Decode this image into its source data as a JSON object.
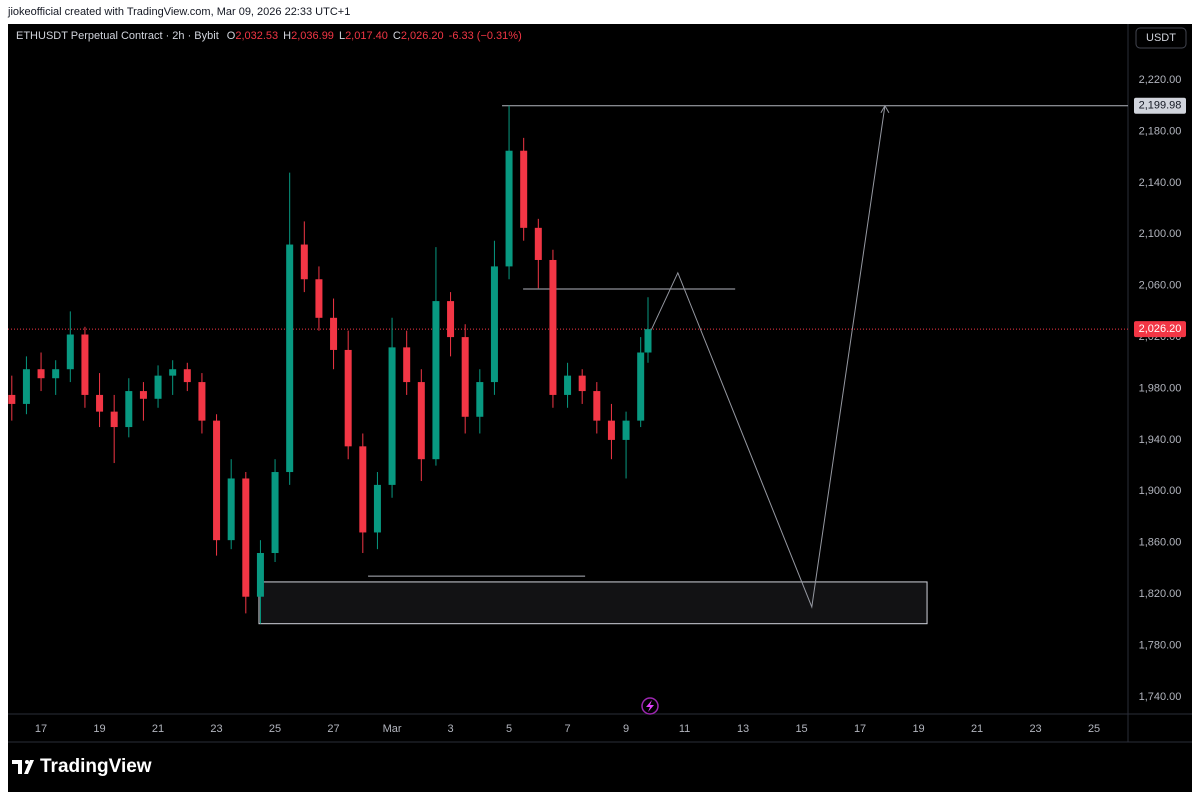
{
  "header": {
    "credit": "jiokeofficial created with TradingView.com, Mar 09, 2026 22:33 UTC+1"
  },
  "chart_data": {
    "type": "candlestick",
    "title": "ETHUSDT Perpetual Contract · 2h · Bybit",
    "ohlc_legend": [
      {
        "key": "O",
        "text": "2,032.53"
      },
      {
        "key": "H",
        "text": "2,036.99"
      },
      {
        "key": "L",
        "text": "2,017.40"
      },
      {
        "key": "C",
        "text": "2,026.20"
      }
    ],
    "change": "-6.33 (−0.31%)",
    "currency": "USDT",
    "brand": "TradingView",
    "up_color": "#089981",
    "down_color": "#f23645",
    "x": [
      16,
      16.5,
      17,
      17.5,
      18,
      18.5,
      19,
      19.5,
      20,
      20.5,
      21,
      21.5,
      22,
      22.5,
      23,
      23.5,
      24,
      24.5,
      25,
      25.5,
      26,
      26.5,
      27,
      27.5,
      28,
      28.5,
      29,
      29.5,
      30,
      30.5,
      31,
      31.5,
      32,
      32.5,
      33,
      33.5,
      34,
      34.5,
      35,
      35.5,
      36,
      36.5,
      37,
      37.5,
      37.75
    ],
    "open": [
      1975,
      1968,
      1995,
      1988,
      1995,
      2022,
      1975,
      1962,
      1950,
      1978,
      1972,
      1990,
      1995,
      1985,
      1955,
      1862,
      1910,
      1818,
      1852,
      1915,
      2092,
      2065,
      2035,
      2010,
      1935,
      1868,
      1905,
      2012,
      1985,
      1925,
      2048,
      2020,
      1958,
      1985,
      2075,
      2165,
      2105,
      2080,
      1975,
      1990,
      1978,
      1955,
      1940,
      1955,
      2008
    ],
    "high": [
      1990,
      2005,
      2008,
      2002,
      2040,
      2028,
      1992,
      1975,
      1988,
      1985,
      1998,
      2002,
      2000,
      1992,
      1960,
      1925,
      1915,
      1862,
      1925,
      2148,
      2110,
      2075,
      2050,
      2025,
      1945,
      1915,
      2035,
      2025,
      1995,
      2090,
      2055,
      2030,
      1995,
      2095,
      2200,
      2175,
      2112,
      2088,
      2000,
      1995,
      1985,
      1968,
      1962,
      2020,
      2051
    ],
    "low": [
      1955,
      1960,
      1978,
      1975,
      1985,
      1965,
      1950,
      1922,
      1942,
      1955,
      1965,
      1975,
      1978,
      1945,
      1850,
      1855,
      1805,
      1797,
      1845,
      1905,
      2055,
      2025,
      1995,
      1925,
      1852,
      1855,
      1895,
      1975,
      1908,
      1920,
      2005,
      1945,
      1945,
      1975,
      2065,
      2095,
      2058,
      1965,
      1965,
      1968,
      1945,
      1925,
      1910,
      1950,
      2000
    ],
    "close": [
      1968,
      1995,
      1988,
      1995,
      2022,
      1975,
      1962,
      1950,
      1978,
      1972,
      1990,
      1995,
      1985,
      1955,
      1862,
      1910,
      1818,
      1852,
      1915,
      2092,
      2065,
      2035,
      2010,
      1935,
      1868,
      1905,
      2012,
      1985,
      1925,
      2048,
      2020,
      1958,
      1985,
      2075,
      2165,
      2105,
      2080,
      1975,
      1990,
      1978,
      1955,
      1940,
      1955,
      2008,
      2026.2
    ],
    "xlim": [
      15.87,
      54.16
    ],
    "xticks": [
      17,
      19,
      21,
      23,
      25,
      27,
      {
        "value": 29,
        "label": "Mar"
      },
      {
        "value": 31,
        "label": "3"
      },
      {
        "value": 33,
        "label": "5"
      },
      {
        "value": 35,
        "label": "7"
      },
      {
        "value": 37,
        "label": "9"
      },
      {
        "value": 39,
        "label": "11"
      },
      {
        "value": 41,
        "label": "13"
      },
      {
        "value": 43,
        "label": "15"
      },
      {
        "value": 45,
        "label": "17"
      },
      {
        "value": 47,
        "label": "19"
      },
      {
        "value": 49,
        "label": "21"
      },
      {
        "value": 51,
        "label": "23"
      },
      {
        "value": 53,
        "label": "25"
      }
    ],
    "ylim": [
      1728.3,
      2263.6
    ],
    "yticks": [
      {
        "value": 1740,
        "label": "1,740.00"
      },
      {
        "value": 1780,
        "label": "1,780.00"
      },
      {
        "value": 1820,
        "label": "1,820.00"
      },
      {
        "value": 1860,
        "label": "1,860.00"
      },
      {
        "value": 1900,
        "label": "1,900.00"
      },
      {
        "value": 1940,
        "label": "1,940.00"
      },
      {
        "value": 1980,
        "label": "1,980.00"
      },
      {
        "value": 2020,
        "label": "2,020.00"
      },
      {
        "value": 2060,
        "label": "2,060.00"
      },
      {
        "value": 2100,
        "label": "2,100.00"
      },
      {
        "value": 2140,
        "label": "2,140.00"
      },
      {
        "value": 2180,
        "label": "2,180.00"
      },
      {
        "value": 2220,
        "label": "2,220.00"
      }
    ],
    "grid": false,
    "last_price": {
      "value": 2026.2,
      "label": "2,026.20"
    },
    "levels": [
      {
        "x": [
          32.76,
          54.16
        ],
        "y": {
          "value": 2199.98,
          "label": "2,199.98"
        }
      },
      {
        "x": [
          33.48,
          40.73
        ],
        "y": 2057.4
      },
      {
        "x": [
          28.18,
          35.6
        ],
        "y": 1834
      }
    ],
    "zone": {
      "x": [
        24.45,
        47.29
      ],
      "y": [
        1797,
        1829.5
      ]
    },
    "projection": {
      "x": [
        37.85,
        38.77,
        43.35,
        45.85
      ],
      "y": [
        2025,
        2070,
        1810,
        2199.98
      ]
    }
  }
}
